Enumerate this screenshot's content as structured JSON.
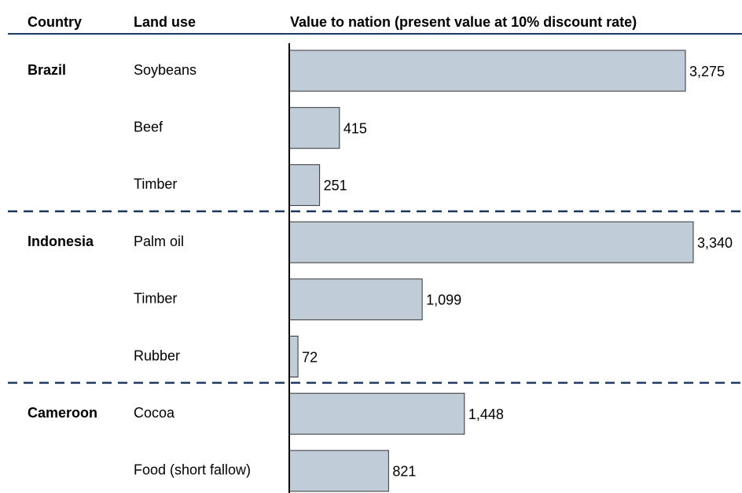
{
  "chart_data": {
    "type": "bar",
    "column_headers": [
      "Country",
      "Land use",
      "Value to nation (present value at 10% discount rate)"
    ],
    "color": "#c0ccd8",
    "groups": [
      {
        "country": "Brazil",
        "categories": [
          "Soybeans",
          "Beef",
          "Timber"
        ],
        "values": [
          3275,
          415,
          251
        ],
        "value_labels": [
          "3,275",
          "415",
          "251"
        ]
      },
      {
        "country": "Indonesia",
        "categories": [
          "Palm oil",
          "Timber",
          "Rubber"
        ],
        "values": [
          3340,
          1099,
          72
        ],
        "value_labels": [
          "3,340",
          "1,099",
          "72"
        ]
      },
      {
        "country": "Cameroon",
        "categories": [
          "Cocoa",
          "Food (short fallow)"
        ],
        "values": [
          1448,
          821
        ],
        "value_labels": [
          "1,448",
          "821"
        ]
      }
    ]
  }
}
